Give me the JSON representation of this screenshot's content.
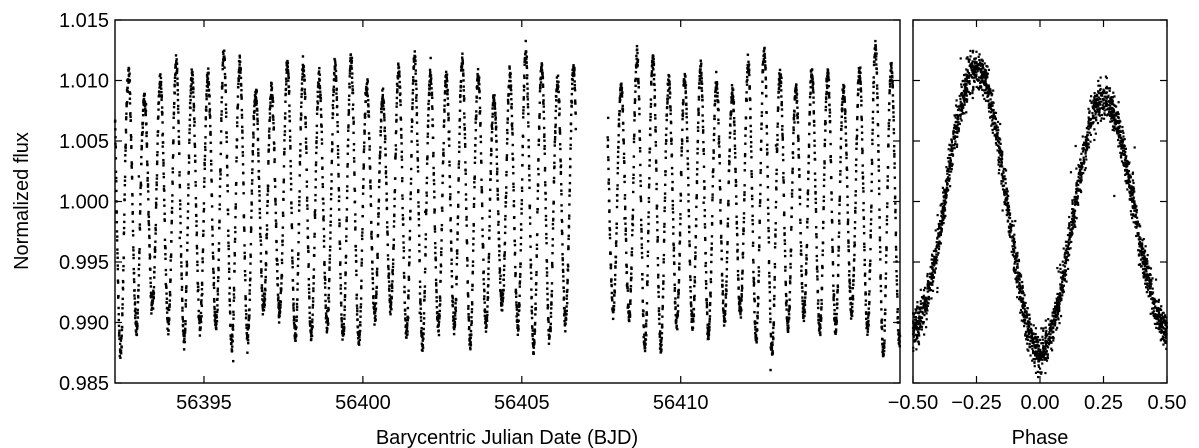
{
  "chart_data": [
    {
      "type": "scatter",
      "panel": "light-curve",
      "xlabel": "Barycentric Julian Date (BJD)",
      "ylabel": "Normalized flux",
      "xlim": [
        56392.2,
        56416.9
      ],
      "ylim": [
        0.985,
        1.015
      ],
      "xticks": [
        56395,
        56400,
        56405,
        56410
      ],
      "xtick_labels": [
        "56395",
        "56400",
        "56405",
        "56410"
      ],
      "yticks": [
        0.985,
        0.99,
        0.995,
        1.0,
        1.005,
        1.01,
        1.015
      ],
      "ytick_labels": [
        "0.985",
        "0.990",
        "0.995",
        "1.000",
        "1.005",
        "1.010",
        "1.015"
      ],
      "marker_color": "#000000",
      "mean_flux": 1.0,
      "amplitude": 0.0105,
      "period_days": 0.5,
      "data_gap": [
        56406.7,
        56407.7
      ],
      "segments": [
        [
          56392.2,
          56406.7
        ],
        [
          56407.7,
          56416.9
        ]
      ],
      "grid": false,
      "legend": "none"
    },
    {
      "type": "scatter",
      "panel": "phase-folded",
      "xlabel": "Phase",
      "ylabel": "",
      "xlim": [
        -0.5,
        0.5
      ],
      "ylim": [
        0.985,
        1.015
      ],
      "xticks": [
        -0.5,
        -0.25,
        0.0,
        0.25,
        0.5
      ],
      "xtick_labels": [
        "−0.50",
        "−0.25",
        "0.00",
        "0.25",
        "0.50"
      ],
      "marker_color": "#000000",
      "minima_phase": [
        -0.5,
        0.0,
        0.5
      ],
      "maxima_phase": [
        -0.25,
        0.25
      ],
      "max_flux": [
        1.011,
        1.0085
      ],
      "min_flux": [
        0.9895,
        0.9875
      ],
      "band_width": 0.0018,
      "grid": false,
      "legend": "none"
    }
  ]
}
